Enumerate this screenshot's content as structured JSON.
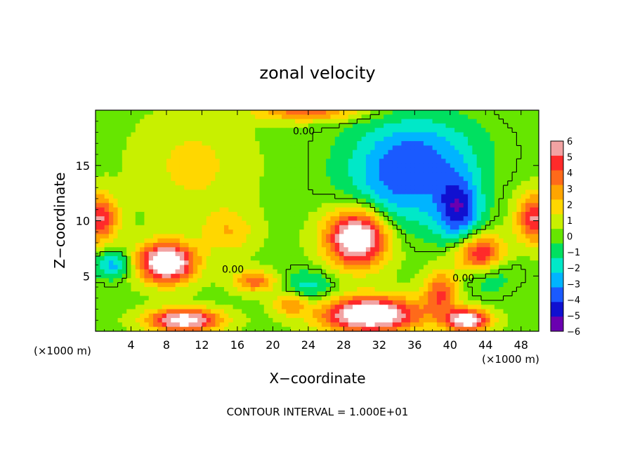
{
  "chart_data": {
    "type": "heatmap",
    "title": "zonal velocity",
    "xlabel": "X−coordinate",
    "ylabel": "Z−coordinate",
    "x_unit_left": "(×1000 m)",
    "x_unit_right": "(×1000 m)",
    "footer": "CONTOUR INTERVAL = 1.000E+01",
    "xlim": [
      0,
      50
    ],
    "ylim": [
      0,
      20
    ],
    "x_ticks": [
      4,
      8,
      12,
      16,
      20,
      24,
      28,
      32,
      36,
      40,
      44,
      48
    ],
    "y_ticks": [
      5,
      10,
      15
    ],
    "contour_labels": [
      {
        "text": "0.00",
        "x": 23.5,
        "z": 17.8
      },
      {
        "text": "0.00",
        "x": 15.5,
        "z": 5.3
      },
      {
        "text": "0.00",
        "x": 41.5,
        "z": 4.5
      }
    ],
    "colorbar": {
      "range": [
        -6,
        6
      ],
      "tick_labels": [
        "6",
        "5",
        "4",
        "3",
        "2",
        "1",
        "0",
        "−1",
        "−2",
        "−3",
        "−4",
        "−5",
        "−6"
      ],
      "colors": [
        "#f2a3a3",
        "#ff2a2a",
        "#ff6a1a",
        "#ffa500",
        "#ffd700",
        "#c8f000",
        "#66e600",
        "#00e060",
        "#00e8c8",
        "#00b4ff",
        "#1a5aff",
        "#1010d0",
        "#6a00b0"
      ]
    },
    "blobs": [
      {
        "x": 0.5,
        "z": 10.2,
        "v": 5,
        "rx": 2.0,
        "rz": 2.2
      },
      {
        "x": 49.5,
        "z": 10.2,
        "v": 5,
        "rx": 2.0,
        "rz": 2.2
      },
      {
        "x": 24,
        "z": 19.8,
        "v": 3.5,
        "rx": 6.0,
        "rz": 0.8
      },
      {
        "x": 11,
        "z": 15,
        "v": 1.5,
        "rx": 6.0,
        "rz": 4.5
      },
      {
        "x": 15,
        "z": 9,
        "v": 2,
        "rx": 3.0,
        "rz": 2.0
      },
      {
        "x": 36,
        "z": 16,
        "v": -3.5,
        "rx": 7.0,
        "rz": 3.5
      },
      {
        "x": 41,
        "z": 11,
        "v": -4.5,
        "rx": 2.5,
        "rz": 3.0
      },
      {
        "x": 34,
        "z": 12,
        "v": -2.5,
        "rx": 6.0,
        "rz": 3.5
      },
      {
        "x": 44,
        "z": 6,
        "v": -4,
        "rx": 3.0,
        "rz": 2.0
      },
      {
        "x": 2,
        "z": 6,
        "v": -3,
        "rx": 2.0,
        "rz": 1.2
      },
      {
        "x": 24,
        "z": 4,
        "v": -2,
        "rx": 3.0,
        "rz": 1.5
      },
      {
        "x": 29.5,
        "z": 8.5,
        "v": 8,
        "rx": 3.5,
        "rz": 2.6
      },
      {
        "x": 43.5,
        "z": 6.8,
        "v": 8,
        "rx": 2.8,
        "rz": 1.8
      },
      {
        "x": 8,
        "z": 6.2,
        "v": 8,
        "rx": 3.2,
        "rz": 1.8
      },
      {
        "x": 31,
        "z": 1.5,
        "v": 8,
        "rx": 5.5,
        "rz": 1.6
      },
      {
        "x": 10,
        "z": 1.0,
        "v": 7,
        "rx": 4.0,
        "rz": 1.0
      },
      {
        "x": 42,
        "z": 1.0,
        "v": 7,
        "rx": 2.5,
        "rz": 1.0
      },
      {
        "x": 39,
        "z": 3.5,
        "v": 4,
        "rx": 2.0,
        "rz": 2.0
      },
      {
        "x": 18,
        "z": 4.5,
        "v": 3.5,
        "rx": 2.5,
        "rz": 1.0
      },
      {
        "x": 22,
        "z": 2.5,
        "v": 3,
        "rx": 2.0,
        "rz": 1.0
      }
    ]
  }
}
